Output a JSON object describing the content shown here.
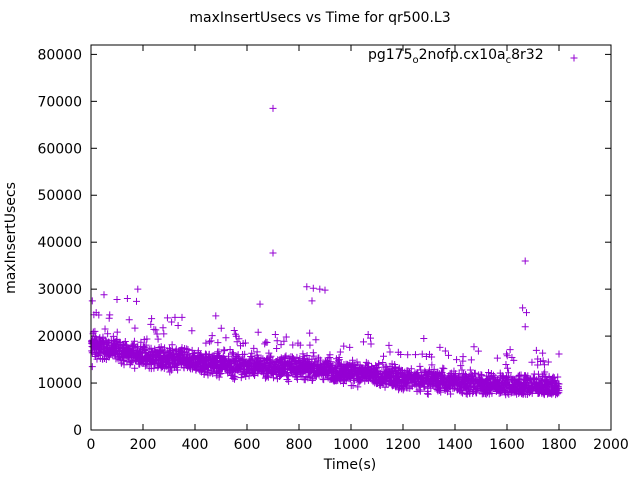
{
  "chart_data": {
    "type": "scatter",
    "title": "maxInsertUsecs vs Time for qr500.L3",
    "xlabel": "Time(s)",
    "ylabel": "maxInsertUsecs",
    "xlim": [
      0,
      2000
    ],
    "ylim": [
      0,
      82000
    ],
    "x_ticks": [
      0,
      200,
      400,
      600,
      800,
      1000,
      1200,
      1400,
      1600,
      1800,
      2000
    ],
    "y_ticks": [
      0,
      10000,
      20000,
      30000,
      40000,
      50000,
      60000,
      70000,
      80000
    ],
    "grid": false,
    "legend_position": "top-right",
    "series": [
      {
        "name": "pg175_o2nofp.cx10a_c8r32",
        "marker": "plus",
        "color": "#9400d3",
        "points": [
          [
            5,
            27500
          ],
          [
            5,
            13500
          ],
          [
            8,
            20500
          ],
          [
            12,
            19000
          ],
          [
            15,
            21000
          ],
          [
            20,
            25000
          ],
          [
            30,
            24500
          ],
          [
            35,
            19000
          ],
          [
            50,
            28800
          ],
          [
            70,
            23800
          ],
          [
            100,
            27800
          ],
          [
            140,
            28000
          ],
          [
            175,
            27400
          ],
          [
            180,
            30000
          ],
          [
            230,
            22500
          ],
          [
            310,
            23000
          ],
          [
            350,
            24000
          ],
          [
            480,
            24300
          ],
          [
            650,
            26800
          ],
          [
            700,
            68500
          ],
          [
            700,
            37700
          ],
          [
            830,
            30500
          ],
          [
            850,
            27500
          ],
          [
            855,
            30200
          ],
          [
            880,
            30000
          ],
          [
            900,
            29800
          ],
          [
            1280,
            19500
          ],
          [
            1660,
            26000
          ],
          [
            1670,
            36000
          ],
          [
            1670,
            22000
          ],
          [
            1675,
            25000
          ],
          [
            1800,
            16200
          ]
        ],
        "trend": [
          [
            0,
            18000
          ],
          [
            100,
            17000
          ],
          [
            200,
            15800
          ],
          [
            300,
            15200
          ],
          [
            400,
            14600
          ],
          [
            500,
            14000
          ],
          [
            600,
            13600
          ],
          [
            700,
            13200
          ],
          [
            800,
            13500
          ],
          [
            900,
            12800
          ],
          [
            1000,
            12200
          ],
          [
            1100,
            11600
          ],
          [
            1200,
            11000
          ],
          [
            1300,
            10600
          ],
          [
            1400,
            10200
          ],
          [
            1500,
            9800
          ],
          [
            1600,
            9600
          ],
          [
            1700,
            9400
          ],
          [
            1800,
            9000
          ]
        ],
        "spread": 3500
      }
    ]
  }
}
